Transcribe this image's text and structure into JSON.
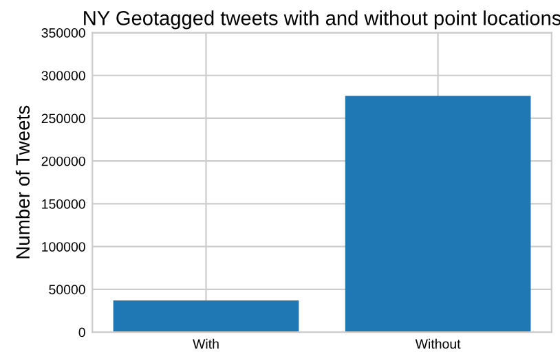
{
  "chart_data": {
    "type": "bar",
    "title": "NY Geotagged tweets with and without point locations",
    "ylabel": "Number of Tweets",
    "categories": [
      "With",
      "Without"
    ],
    "values": [
      37000,
      276000
    ],
    "color": "#1f77b4",
    "ylim": [
      0,
      350000
    ],
    "yticks": [
      0,
      50000,
      100000,
      150000,
      200000,
      250000,
      300000,
      350000
    ],
    "grid": true
  }
}
